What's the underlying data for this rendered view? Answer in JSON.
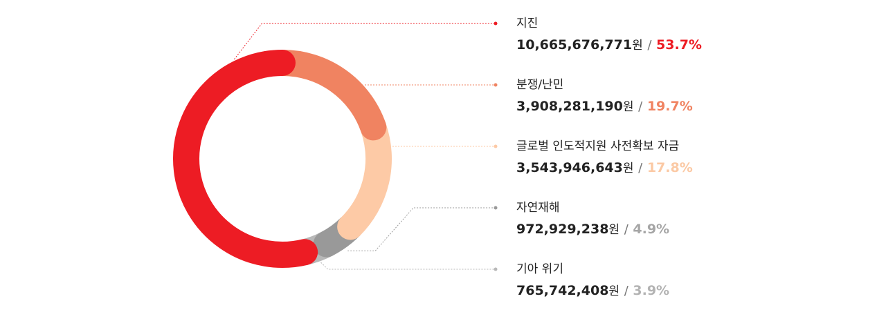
{
  "chart_data": {
    "type": "pie",
    "variant": "donut",
    "total_unit": "원",
    "slices": [
      {
        "label": "지진",
        "value": 10665676771,
        "value_text": "10,665,676,771",
        "unit": "원",
        "percent": 53.7,
        "percent_text": "53.7%",
        "color": "#ed1c24",
        "pct_color": "#ed1c24"
      },
      {
        "label": "분쟁/난민",
        "value": 3908281190,
        "value_text": "3,908,281,190",
        "unit": "원",
        "percent": 19.7,
        "percent_text": "19.7%",
        "color": "#f08361",
        "pct_color": "#f08361"
      },
      {
        "label": "글로벌 인도적지원 사전확보 자금",
        "value": 3543946643,
        "value_text": "3,543,946,643",
        "unit": "원",
        "percent": 17.8,
        "percent_text": "17.8%",
        "color": "#fdcaa6",
        "pct_color": "#fbc9a4"
      },
      {
        "label": "자연재해",
        "value": 972929238,
        "value_text": "972,929,238",
        "unit": "원",
        "percent": 4.9,
        "percent_text": "4.9%",
        "color": "#999999",
        "pct_color": "#a6a6a6"
      },
      {
        "label": "기아 위기",
        "value": 765742408,
        "value_text": "765,742,408",
        "unit": "원",
        "percent": 3.9,
        "percent_text": "3.9%",
        "color": "#b8b8b8",
        "pct_color": "#b3b3b3"
      }
    ],
    "separator": "/",
    "legend_placement": "right"
  }
}
